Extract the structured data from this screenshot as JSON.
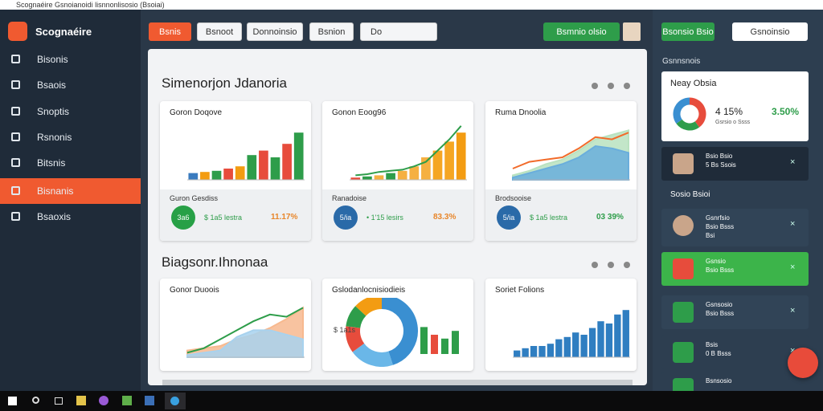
{
  "window_title": "Scognaéire Gsnoianoidi lisnnonlisosio (Bsoiai)",
  "app_name": "Scognaéire",
  "nav": [
    "Bisonis",
    "Bsaois",
    "Snoptis",
    "Rsnonis",
    "Bitsnis",
    "Bisnanis",
    "Bsaoxis"
  ],
  "active_nav": 5,
  "toolbar": {
    "buttons": [
      "Bsnis",
      "Bsnoot",
      "Donnoinsio",
      "Bsnion",
      "Do"
    ],
    "action": "Bsmnio olsio"
  },
  "sections": [
    {
      "title": "Simenorjon Jdanoria",
      "cards": [
        {
          "title": "Goron Doqove",
          "footer_title": "Guron Gesdiss",
          "badge": "3a6",
          "amount": "$ 1a5 lestra",
          "change": "11.17%",
          "badge_color": "#27a046",
          "change_color": "#e8862a",
          "chart": {
            "type": "bar",
            "ylim": [
              0,
              25
            ],
            "values": [
              3,
              3.5,
              4,
              5,
              6,
              11,
              13,
              10,
              16,
              21
            ],
            "colors": [
              "#3a7bbf",
              "#f39c12",
              "#2e9d4a",
              "#e74c3c",
              "#f39c12",
              "#2e9d4a",
              "#e74c3c",
              "#2e9d4a",
              "#e74c3c",
              "#2e9d4a"
            ]
          }
        },
        {
          "title": "Gonon Eoog96",
          "footer_title": "Ranadoise",
          "badge": "5/ia",
          "amount": "• 1'15 lesirs",
          "change": "83.3%",
          "badge_color": "#2a6aa8",
          "change_color": "#e8862a",
          "chart": {
            "type": "bar",
            "ylim": [
              0,
              25
            ],
            "values": [
              1,
              1.5,
              2,
              3,
              4,
              6,
              10,
              13,
              17,
              21
            ],
            "colors": [
              "#e74c3c",
              "#2e9d4a",
              "#f5b041",
              "#2e9d4a",
              "#f5b041",
              "#f5b041",
              "#f5b041",
              "#f5a623",
              "#f5a623",
              "#f39c12"
            ],
            "line": [
              2,
              2.5,
              3.5,
              4,
              4.5,
              6,
              8,
              13,
              18,
              24
            ],
            "line_color": "#2e9d4a"
          }
        },
        {
          "title": "Ruma Dnoolia",
          "footer_title": "Brodsooise",
          "badge": "5/ia",
          "amount": "$ 1a5 lestra",
          "change": "03 39%",
          "badge_color": "#2a6aa8",
          "change_color": "#2e9d4a",
          "chart": {
            "type": "area",
            "ylim": [
              0,
              25
            ],
            "series": [
              {
                "color": "#b9e2c0",
                "values": [
                  2,
                  4,
                  7,
                  9,
                  13,
                  18,
                  20,
                  22
                ]
              },
              {
                "color": "#6aaedc",
                "values": [
                  1,
                  3,
                  5,
                  7,
                  10,
                  15,
                  14,
                  12
                ]
              },
              {
                "color": "#f26b2a",
                "values": [
                  5,
                  8,
                  9,
                  10,
                  14,
                  19,
                  18,
                  21
                ]
              }
            ]
          }
        }
      ]
    },
    {
      "title": "Biagsonr.Ihnonaa",
      "cards": [
        {
          "title": "Gonor Duoois",
          "chart": {
            "type": "area",
            "ylim": [
              0,
              25
            ],
            "series": [
              {
                "color": "#f7b98f",
                "values": [
                  3,
                  4,
                  5,
                  8,
                  10,
                  13,
                  17,
                  22
                ]
              },
              {
                "color": "#a8d2ee",
                "values": [
                  1,
                  2,
                  3,
                  9,
                  12,
                  12,
                  10,
                  8
                ]
              },
              {
                "color": "#2e9d4a",
                "values": [
                  2,
                  4,
                  8,
                  12,
                  16,
                  19,
                  18,
                  22
                ]
              }
            ]
          }
        },
        {
          "title": "Gslodanlocnisiodieis",
          "chart": {
            "type": "pie",
            "side_label": "$ 1a1s",
            "values": [
              45,
              20,
              12,
              10,
              13
            ],
            "colors": [
              "#3a8fd1",
              "#6ab7e8",
              "#e74c3c",
              "#2e9d4a",
              "#f39c12"
            ],
            "ylim": [
              0,
              25
            ],
            "bars": [
              14,
              10,
              8,
              12
            ],
            "bar_colors": [
              "#2e9d4a",
              "#e74c3c",
              "#2e9d4a",
              "#2e9d4a"
            ]
          }
        },
        {
          "title": "Soriet Folions",
          "chart": {
            "type": "bar",
            "ylim": [
              0,
              25
            ],
            "values": [
              3,
              4,
              5,
              5,
              6,
              8,
              9,
              11,
              10,
              13,
              16,
              15,
              19,
              21
            ],
            "colors": [
              "#2f7ec1"
            ]
          }
        }
      ]
    }
  ],
  "right": {
    "buttons": [
      "Bsonsio Bsio",
      "Gsnoinsio"
    ],
    "heading": "Gsnnsnois",
    "summary": {
      "title": "Neay Obsia",
      "value": "4 15%",
      "change": "3.50%",
      "note": "Gsrsio o Ssss",
      "pie": {
        "values": [
          40,
          25,
          35
        ],
        "colors": [
          "#e74c3c",
          "#2e9d4a",
          "#3a8fd1"
        ]
      }
    },
    "items": [
      {
        "line1": "Bsio Bsio",
        "line2": "5 Bs Ssois"
      },
      {
        "line1": "Gsnrfsio",
        "line2": "Bsio Bsss",
        "line3": "Bsi"
      },
      {
        "line1": "Gsnsio",
        "line2": "Bsio Bsss"
      },
      {
        "line1": "Gsnsosio",
        "line2": "Bsio Bsss"
      },
      {
        "line1": "Bsis",
        "line2": "0 B Bsss"
      },
      {
        "line1": "Bsnsosio"
      }
    ],
    "subheading": "Sosio Bsioi"
  }
}
